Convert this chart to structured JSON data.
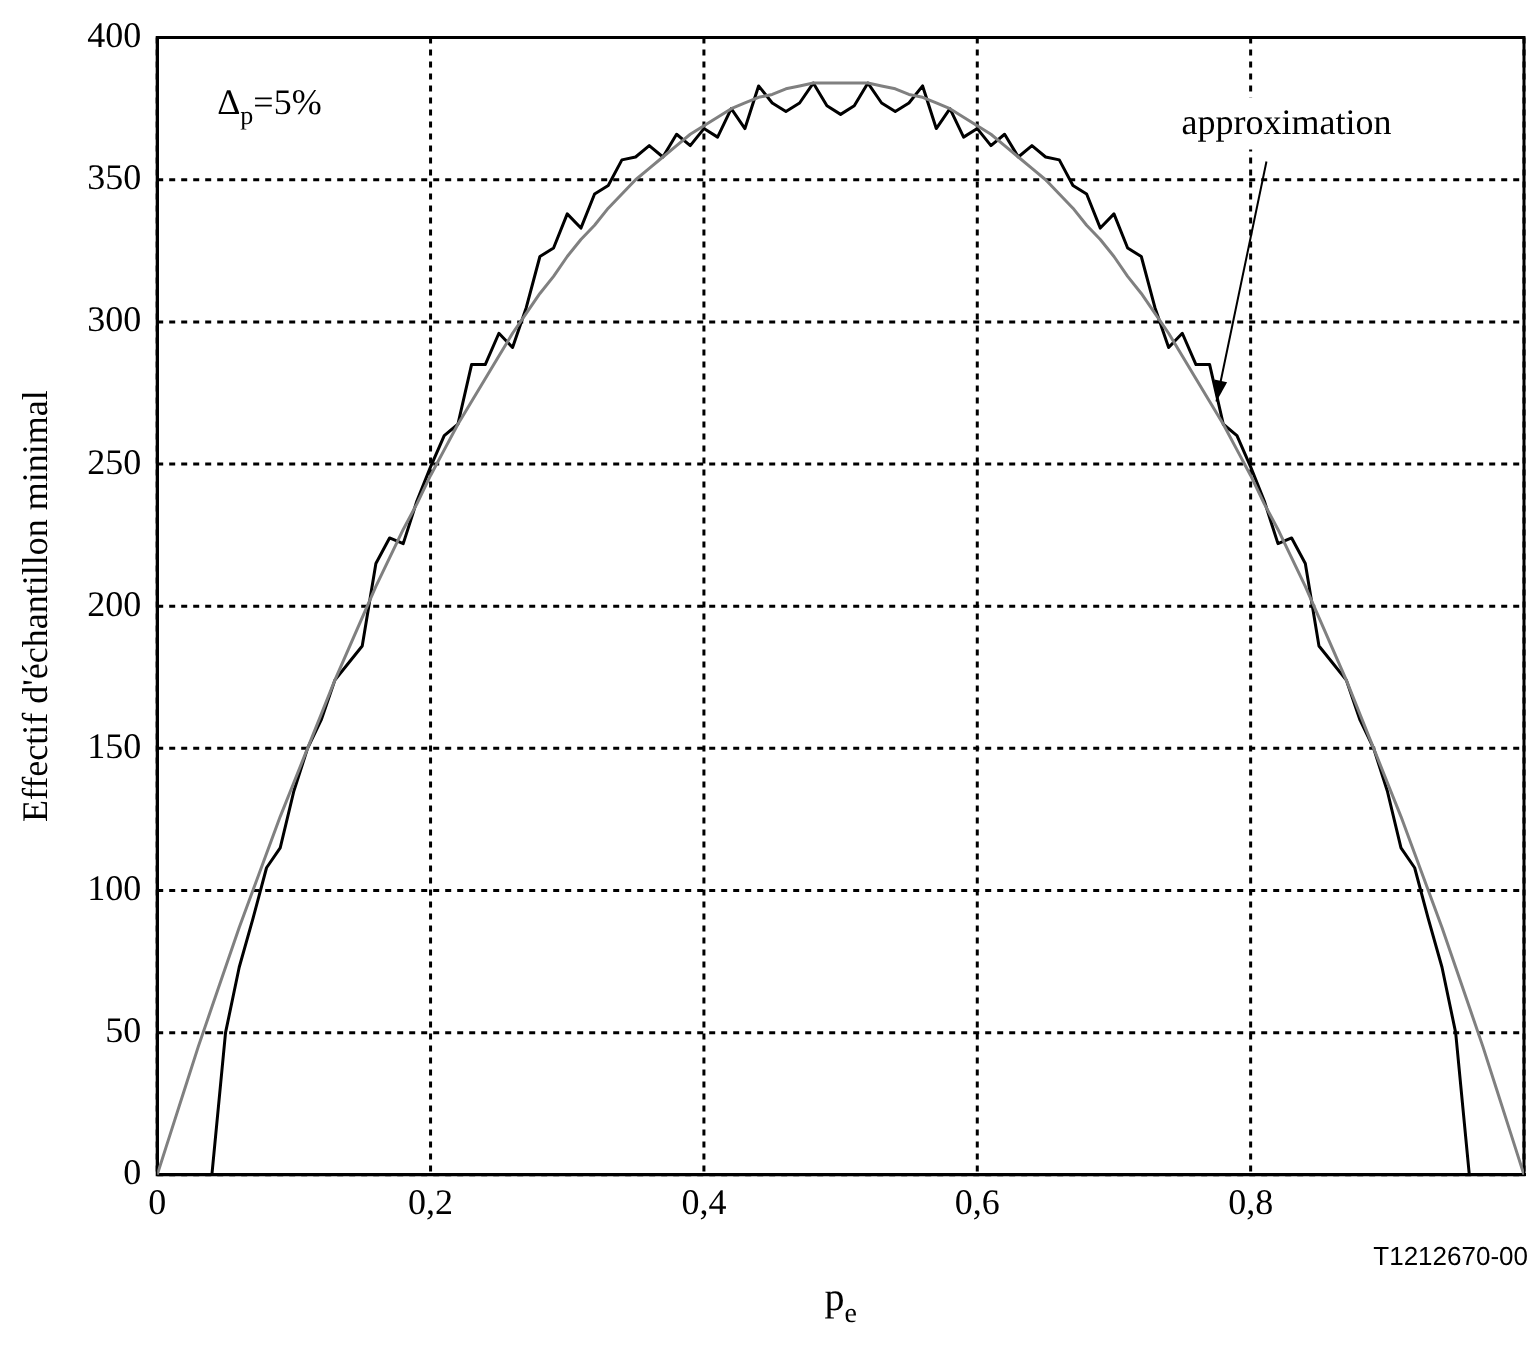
{
  "chart_data": {
    "type": "line",
    "xlabel": "p$_{e}$",
    "ylabel": "Effectif d'échantillon minimal",
    "x": [
      0,
      0.01,
      0.02,
      0.03,
      0.04,
      0.05,
      0.06,
      0.07,
      0.08,
      0.09,
      0.1,
      0.11,
      0.12,
      0.13,
      0.14,
      0.15,
      0.16,
      0.17,
      0.18,
      0.19,
      0.2,
      0.21,
      0.22,
      0.23,
      0.24,
      0.25,
      0.26,
      0.27,
      0.28,
      0.29,
      0.3,
      0.31,
      0.32,
      0.33,
      0.34,
      0.35,
      0.36,
      0.37,
      0.38,
      0.39,
      0.4,
      0.41,
      0.42,
      0.43,
      0.44,
      0.45,
      0.46,
      0.47,
      0.48,
      0.49,
      0.5,
      0.51,
      0.52,
      0.53,
      0.54,
      0.55,
      0.56,
      0.57,
      0.58,
      0.59,
      0.6,
      0.61,
      0.62,
      0.63,
      0.64,
      0.65,
      0.66,
      0.67,
      0.68,
      0.69,
      0.7,
      0.71,
      0.72,
      0.73,
      0.74,
      0.75,
      0.76,
      0.77,
      0.78,
      0.79,
      0.8,
      0.81,
      0.82,
      0.83,
      0.84,
      0.85,
      0.86,
      0.87,
      0.88,
      0.89,
      0.9,
      0.91,
      0.92,
      0.93,
      0.94,
      0.95,
      0.96,
      0.97,
      0.98,
      0.99,
      1
    ],
    "series": [
      {
        "color": "#808080",
        "values": [
          0,
          15,
          30,
          45,
          59,
          73,
          87,
          100,
          113,
          126,
          138,
          150,
          162,
          174,
          185,
          196,
          207,
          217,
          227,
          236,
          246,
          255,
          264,
          272,
          280,
          288,
          296,
          303,
          310,
          316,
          323,
          329,
          334,
          340,
          345,
          350,
          354,
          358,
          362,
          366,
          369,
          372,
          375,
          377,
          379,
          380,
          382,
          383,
          384,
          384,
          384,
          384,
          384,
          383,
          382,
          380,
          379,
          377,
          375,
          372,
          369,
          366,
          362,
          358,
          354,
          350,
          345,
          340,
          334,
          329,
          323,
          316,
          310,
          303,
          296,
          288,
          280,
          272,
          264,
          255,
          246,
          236,
          227,
          217,
          207,
          196,
          185,
          174,
          162,
          150,
          138,
          126,
          113,
          100,
          87,
          73,
          59,
          45,
          30,
          15,
          0
        ]
      },
      {
        "color": "#000000",
        "values": [
          0,
          0,
          0,
          0,
          0,
          50,
          73,
          90,
          108,
          115,
          135,
          150,
          160,
          174,
          180,
          186,
          215,
          224,
          222,
          237,
          249,
          260,
          264,
          285,
          285,
          296,
          291,
          305,
          323,
          326,
          338,
          333,
          345,
          348,
          357,
          358,
          362,
          358,
          366,
          362,
          368,
          365,
          375,
          368,
          383,
          377,
          374,
          377,
          384,
          376,
          373,
          376,
          384,
          377,
          374,
          377,
          383,
          368,
          375,
          365,
          368,
          362,
          366,
          358,
          362,
          358,
          357,
          348,
          345,
          333,
          338,
          326,
          323,
          305,
          291,
          296,
          285,
          285,
          264,
          260,
          249,
          237,
          222,
          224,
          215,
          186,
          180,
          174,
          160,
          150,
          135,
          115,
          108,
          90,
          73,
          50,
          0,
          0,
          0,
          0,
          0
        ]
      }
    ],
    "xlim": [
      0,
      1
    ],
    "xticks": [
      0,
      {
        "value": 0.2,
        "label": "0,2"
      },
      {
        "value": 0.4,
        "label": "0,4"
      },
      {
        "value": 0.6,
        "label": "0,6"
      },
      {
        "value": 0.8,
        "label": "0,8"
      },
      {
        "value": 1,
        "label": null
      }
    ],
    "ylim": [
      0,
      400
    ],
    "yticks": [
      0,
      50,
      100,
      150,
      200,
      250,
      300,
      350,
      400
    ],
    "grid": true,
    "legend": false,
    "marker": "none",
    "line_style": "solid",
    "annotations": [
      "Δ$_{p}$=5%",
      {
        "text": "approximation",
        "x": 0.775,
        "y": 272
      },
      "T1212670-00"
    ]
  }
}
